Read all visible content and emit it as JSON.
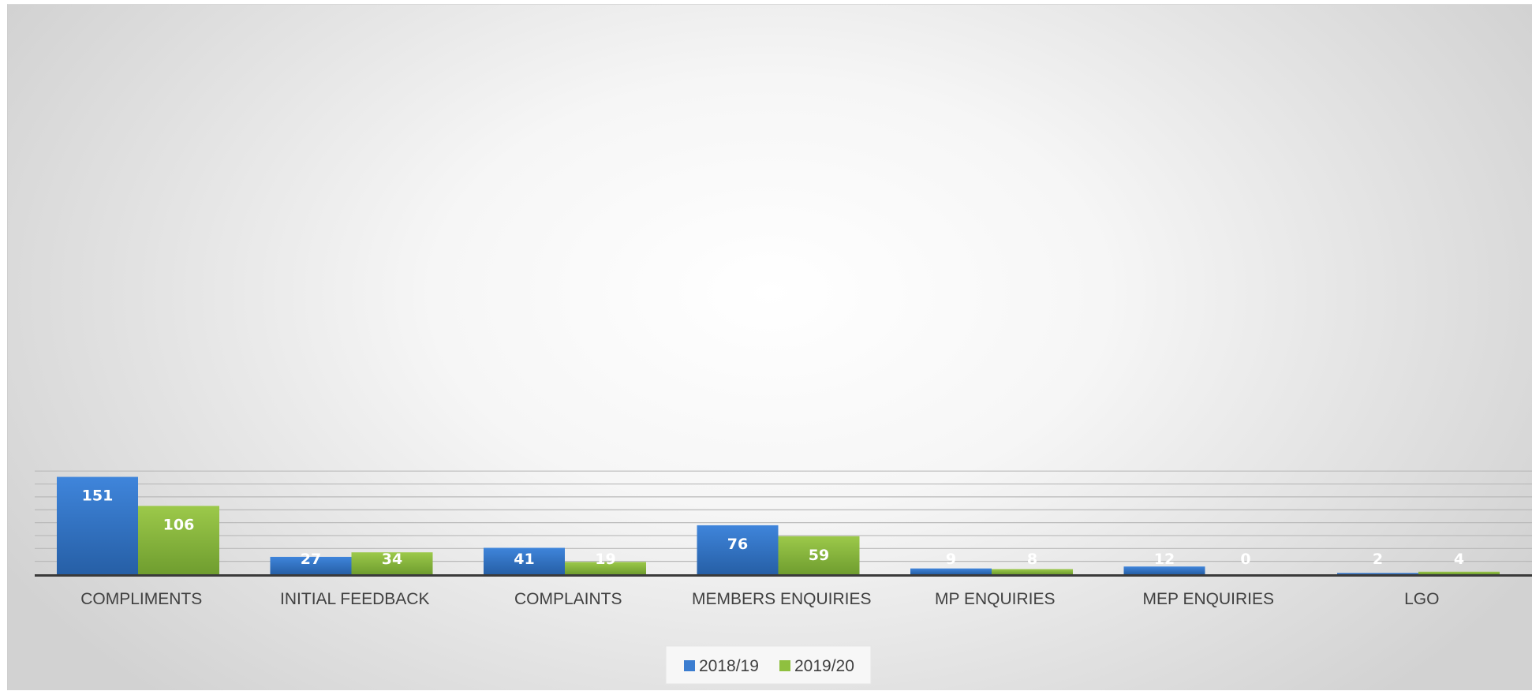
{
  "chart_data": {
    "type": "bar",
    "categories": [
      "COMPLIMENTS",
      "INITIAL FEEDBACK",
      "COMPLAINTS",
      "MEMBERS ENQUIRIES",
      "MP ENQUIRIES",
      "MEP ENQUIRIES",
      "LGO"
    ],
    "series": [
      {
        "name": "2018/19",
        "values": [
          151,
          27,
          41,
          76,
          9,
          12,
          2
        ],
        "color": "#3b7dd0"
      },
      {
        "name": "2019/20",
        "values": [
          106,
          34,
          19,
          59,
          8,
          0,
          4
        ],
        "color": "#8fc03f"
      }
    ],
    "title": "",
    "xlabel": "",
    "ylabel": "",
    "ylim": [
      0,
      160
    ],
    "y_gridline_step": 20,
    "grid": true,
    "show_y_tick_labels": false,
    "data_labels": true,
    "legend_position": "bottom-center"
  }
}
